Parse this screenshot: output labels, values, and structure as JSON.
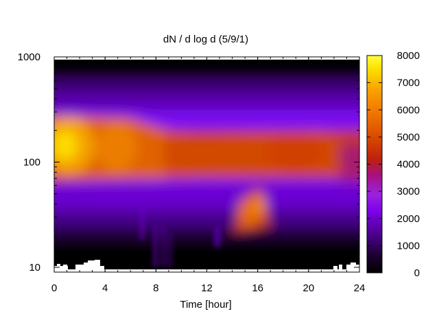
{
  "chart_data": {
    "type": "heatmap",
    "title": "dN / d log d (5/9/1)",
    "xlabel": "Time [hour]",
    "ylabel": "",
    "x_range": [
      0,
      24
    ],
    "y_range": [
      9,
      1000
    ],
    "y_scale": "log",
    "x_ticks": [
      0,
      4,
      8,
      12,
      16,
      20,
      24
    ],
    "x_tick_labels": [
      "0",
      "4",
      "8",
      "12",
      "16",
      "20",
      "24"
    ],
    "y_ticks": [
      10,
      100,
      1000
    ],
    "y_tick_labels": [
      "10",
      "100",
      "1000"
    ],
    "colorbar": {
      "range": [
        0,
        8000
      ],
      "ticks": [
        0,
        1000,
        2000,
        3000,
        4000,
        5000,
        6000,
        7000,
        8000
      ],
      "tick_labels": [
        "0",
        "1000",
        "2000",
        "3000",
        "4000",
        "5000",
        "6000",
        "7000",
        "8000"
      ],
      "colormap": [
        "#000000",
        "#2a0048",
        "#6b00b8",
        "#8f1fff",
        "#a31aa6",
        "#c43a1c",
        "#e05a00",
        "#f28a00",
        "#fdbb00",
        "#ffff33"
      ]
    },
    "features": [
      {
        "description": "broad concentration band",
        "x_range": [
          0,
          24
        ],
        "y_center": 120,
        "peak_value": 5200
      },
      {
        "description": "strongest concentration near start",
        "x": 0.8,
        "y": 150,
        "peak_value": 7800
      },
      {
        "description": "growth event",
        "x_range": [
          14,
          17
        ],
        "y_center": 38,
        "peak_value": 6000
      }
    ],
    "grid": false,
    "legend": "colorbar-right"
  }
}
